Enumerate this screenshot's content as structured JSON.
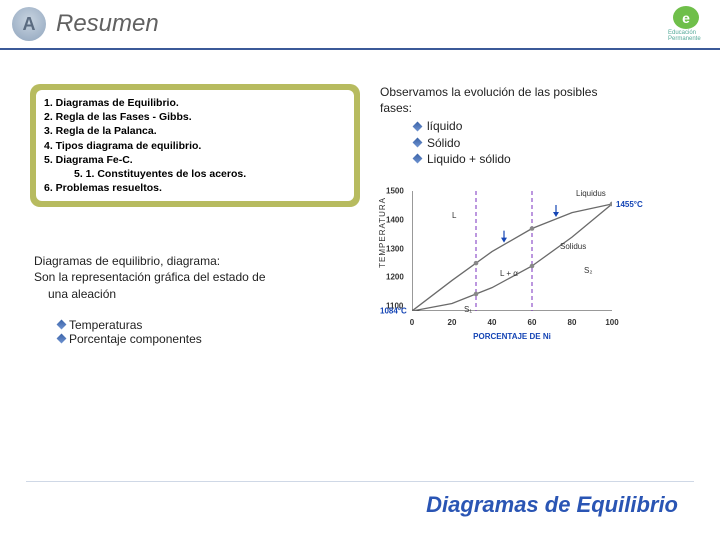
{
  "header": {
    "title": "Resumen",
    "icon_letter": "A",
    "logo_letter": "e",
    "logo_caption": "Educación Permanente"
  },
  "toc": [
    {
      "n": "1.",
      "t": "Diagramas de Equilibrio.",
      "sub": false
    },
    {
      "n": "2.",
      "t": "Regla de las Fases - Gibbs.",
      "sub": false
    },
    {
      "n": "3.",
      "t": "Regla de la Palanca.",
      "sub": false
    },
    {
      "n": "4.",
      "t": "Tipos diagrama de equilibrio.",
      "sub": false
    },
    {
      "n": "5.",
      "t": "Diagrama Fe-C.",
      "sub": false
    },
    {
      "n": "5. 1.",
      "t": "Constituyentes de los aceros.",
      "sub": true
    },
    {
      "n": "6.",
      "t": "Problemas resueltos.",
      "sub": false
    }
  ],
  "observation": {
    "line1": "Observamos la evolución de las posibles",
    "line2": "fases:",
    "items": [
      "líquido",
      "Sólido",
      "Liquido + sólido"
    ]
  },
  "chart": {
    "type": "phase-diagram-line",
    "ylabel_letters": "TEMPERATURA",
    "xlabel": "PORCENTAJE DE Ni",
    "xlim": [
      0,
      100
    ],
    "ylim": [
      1084,
      1500
    ],
    "xticks": [
      0,
      20,
      40,
      60,
      80,
      100
    ],
    "yticks": [
      1100,
      1200,
      1300,
      1400,
      1500
    ],
    "y_bottom_label": "1084°C",
    "right_annot": "1455°C",
    "liquidus_label": "Liquidus",
    "solidus_label": "Solidus",
    "region_labels": {
      "L": "L",
      "LS": "L + α",
      "S_left": "S₁",
      "S_right": "S₂"
    },
    "liquidus": [
      [
        0,
        1084
      ],
      [
        20,
        1190
      ],
      [
        40,
        1290
      ],
      [
        60,
        1370
      ],
      [
        80,
        1425
      ],
      [
        100,
        1455
      ]
    ],
    "solidus": [
      [
        0,
        1084
      ],
      [
        20,
        1110
      ],
      [
        40,
        1165
      ],
      [
        60,
        1240
      ],
      [
        80,
        1340
      ],
      [
        100,
        1455
      ]
    ],
    "verticals_x": [
      32,
      60
    ],
    "arrows_x": [
      46,
      72
    ],
    "colors": {
      "axis": "#333333",
      "liquidus": "#6a6a6a",
      "solidus": "#6a6a6a",
      "vertical": "#7a2fbf",
      "point_fill": "#888888",
      "arrow": "#1545b5",
      "xlabel": "#1545b5",
      "right_annot": "#1545b5"
    },
    "background": "#ffffff"
  },
  "diagram_text": {
    "l1": "Diagramas de equilibrio, diagrama:",
    "l2": "Son la representación gráfica del estado de",
    "l3": "una aleación",
    "bullets": [
      "Temperaturas",
      "Porcentaje componentes"
    ]
  },
  "footer": {
    "title": "Diagramas de Equilibrio"
  }
}
